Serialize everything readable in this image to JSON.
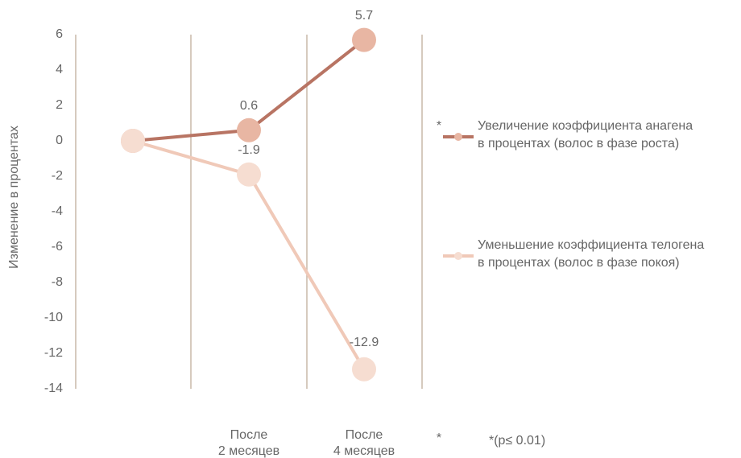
{
  "chart_data": {
    "type": "line",
    "y_label": "Изменение в  процентах",
    "categories": [
      null,
      "После\n2 месяцев",
      "После\n4 месяцев"
    ],
    "series": [
      {
        "name": "Увеличение коэффициента анагена\nв процентах (волос в фазе роста)",
        "color": "#b87463",
        "marker_color": "#e8b6a3",
        "values": [
          0,
          0.6,
          5.7
        ]
      },
      {
        "name": "Уменьшение коэффициента телогена\nв процентах (волос в фазе покоя)",
        "color": "#f0c9b8",
        "marker_color": "#f6ddd1",
        "values": [
          0,
          -1.9,
          -12.9
        ]
      }
    ],
    "ylim": [
      -14,
      6
    ],
    "yticks": [
      6,
      4,
      2,
      0,
      -2,
      -4,
      -6,
      -8,
      -10,
      -12,
      -14
    ],
    "annotations": [
      "*",
      "*",
      "*(p≤ 0.01)"
    ]
  }
}
